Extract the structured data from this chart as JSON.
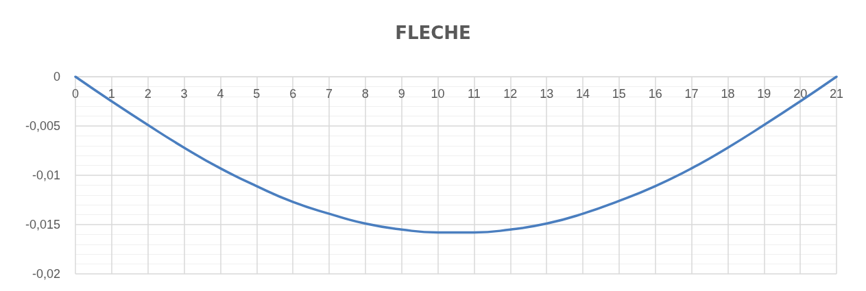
{
  "chart_data": {
    "type": "line",
    "title": "FLECHE",
    "x": [
      0,
      1,
      2,
      3,
      4,
      5,
      6,
      7,
      8,
      9,
      10,
      10.5,
      11,
      12,
      13,
      14,
      15,
      16,
      17,
      18,
      19,
      20,
      21
    ],
    "series": [
      {
        "color": "#4a7ebf",
        "values": [
          0,
          -0.0025,
          -0.0049,
          -0.0072,
          -0.0093,
          -0.0111,
          -0.0127,
          -0.0139,
          -0.0149,
          -0.0155,
          -0.0158,
          -0.0158,
          -0.0158,
          -0.0155,
          -0.0149,
          -0.0139,
          -0.0126,
          -0.0111,
          -0.0093,
          -0.0072,
          -0.0049,
          -0.0025,
          0
        ]
      }
    ],
    "xlim": [
      0,
      21
    ],
    "xticks": [
      0,
      1,
      2,
      3,
      4,
      5,
      6,
      7,
      8,
      9,
      10,
      11,
      12,
      13,
      14,
      15,
      16,
      17,
      18,
      19,
      20,
      21
    ],
    "ylim": [
      -0.02,
      0
    ],
    "yticks": [
      {
        "value": -0.02,
        "label": "-0,02"
      },
      {
        "value": -0.015,
        "label": "-0,015"
      },
      {
        "value": -0.01,
        "label": "-0,01"
      },
      {
        "value": -0.005,
        "label": "-0,005"
      },
      0
    ],
    "grid": true,
    "marker": "none",
    "line_style": "solid"
  }
}
